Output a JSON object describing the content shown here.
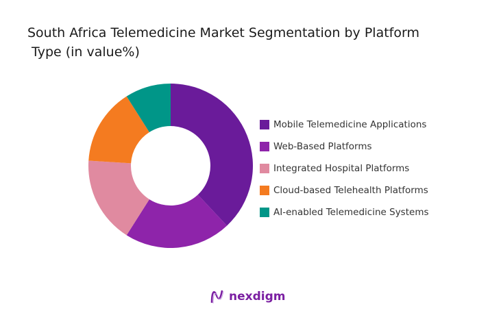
{
  "chart_data": {
    "type": "pie",
    "variant": "donut",
    "title": "South Africa Telemedicine Market Segmentation by Platform\n Type (in value%)",
    "categories": [
      "Mobile Telemedicine Applications",
      "Web-Based Platforms",
      "Integrated Hospital Platforms",
      "Cloud-based Telehealth Platforms",
      "AI-enabled Telemedicine Systems"
    ],
    "values": [
      38,
      21,
      17,
      15,
      9
    ],
    "colors": [
      "#6a1b9a",
      "#8e24aa",
      "#e08aa0",
      "#f47b20",
      "#009688"
    ],
    "legend_position": "right"
  },
  "brand": {
    "name": "nexdigm",
    "color": "#7b1fa2"
  }
}
